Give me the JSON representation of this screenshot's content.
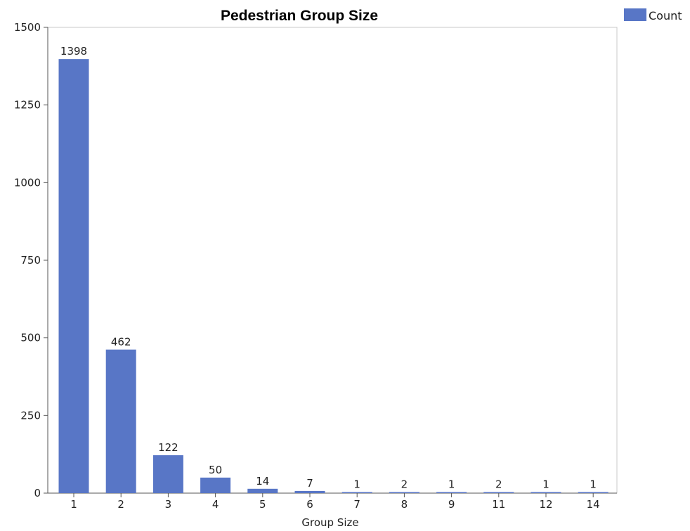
{
  "chart_data": {
    "type": "bar",
    "title": "Pedestrian Group Size",
    "xlabel": "Group Size",
    "ylabel": "",
    "categories": [
      "1",
      "2",
      "3",
      "4",
      "5",
      "6",
      "7",
      "8",
      "9",
      "11",
      "12",
      "14"
    ],
    "series": [
      {
        "name": "Count",
        "values": [
          1398,
          462,
          122,
          50,
          14,
          7,
          1,
          2,
          1,
          2,
          1,
          1
        ],
        "color": "#5876C6"
      }
    ],
    "ylim": [
      0,
      1500
    ],
    "yticks": [
      "0",
      "250",
      "500",
      "750",
      "1000",
      "1250",
      "1500"
    ],
    "data_labels": [
      "1398",
      "462",
      "122",
      "50",
      "14",
      "7",
      "1",
      "2",
      "1",
      "2",
      "1",
      "1"
    ],
    "grid": false,
    "legend": "top-right",
    "frame_color": "#C8C8C8"
  }
}
